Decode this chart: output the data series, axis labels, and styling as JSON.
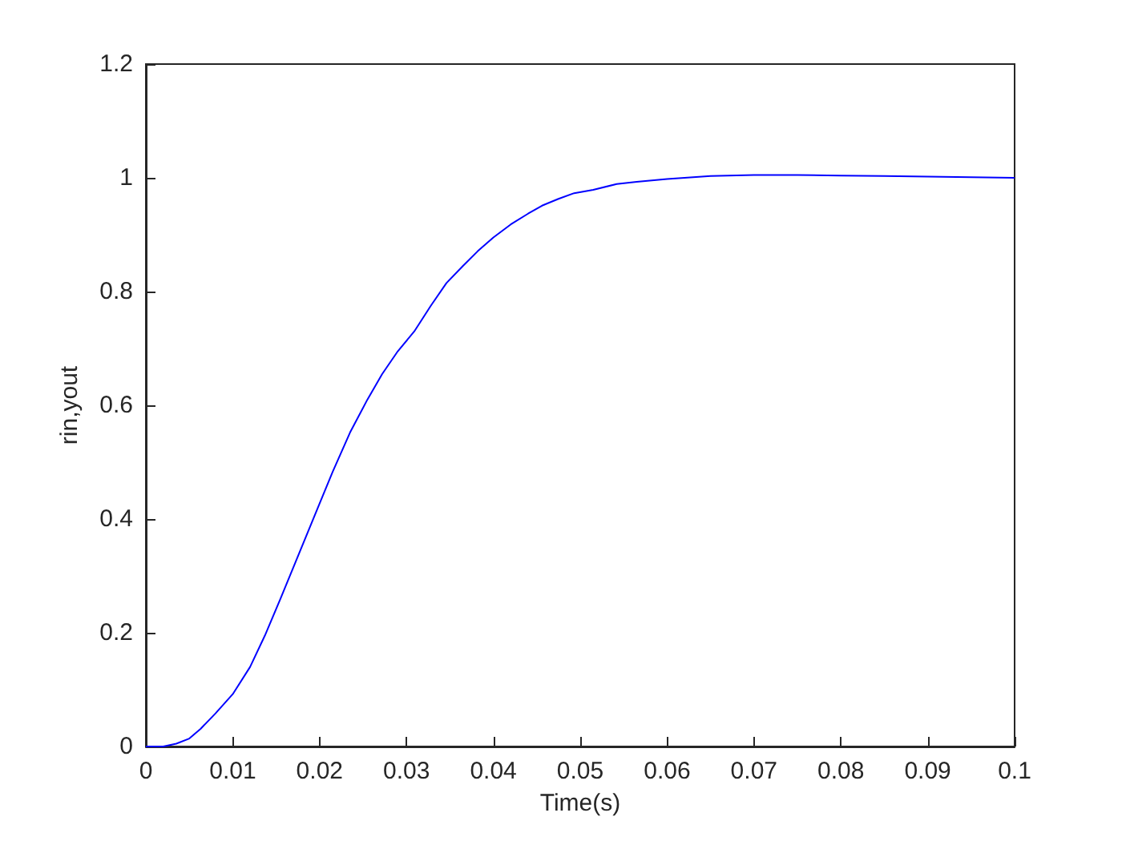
{
  "chart_data": {
    "type": "line",
    "xlabel": "Time(s)",
    "ylabel": "rin,yout",
    "x": [
      0,
      0.0013,
      0.002,
      0.0035,
      0.005,
      0.0063,
      0.008,
      0.01,
      0.012,
      0.0137,
      0.0155,
      0.0173,
      0.0198,
      0.0215,
      0.0235,
      0.0255,
      0.0272,
      0.029,
      0.0309,
      0.0328,
      0.0346,
      0.0365,
      0.0382,
      0.04,
      0.042,
      0.044,
      0.0456,
      0.0475,
      0.0493,
      0.0515,
      0.0542,
      0.0565,
      0.06,
      0.065,
      0.07,
      0.075,
      0.08,
      0.085,
      0.09,
      0.095,
      0.1
    ],
    "series": [
      {
        "color": "#0000ff",
        "values": [
          0,
          0,
          0,
          0.005,
          0.014,
          0.031,
          0.058,
          0.092,
          0.14,
          0.195,
          0.26,
          0.327,
          0.42,
          0.483,
          0.552,
          0.61,
          0.655,
          0.695,
          0.73,
          0.775,
          0.815,
          0.845,
          0.871,
          0.895,
          0.918,
          0.937,
          0.951,
          0.963,
          0.973,
          0.979,
          0.989,
          0.993,
          0.998,
          1.003,
          1.005,
          1.005,
          1.004,
          1.003,
          1.002,
          1.001,
          1.0
        ]
      }
    ],
    "xlim": [
      0,
      0.1
    ],
    "xticks": [
      0,
      0.01,
      0.02,
      0.03,
      0.04,
      0.05,
      0.06,
      0.07,
      0.08,
      0.09,
      0.1
    ],
    "ylim": [
      0,
      1.2
    ],
    "yticks": [
      0,
      0.2,
      0.4,
      0.6,
      0.8,
      1,
      1.2
    ]
  }
}
